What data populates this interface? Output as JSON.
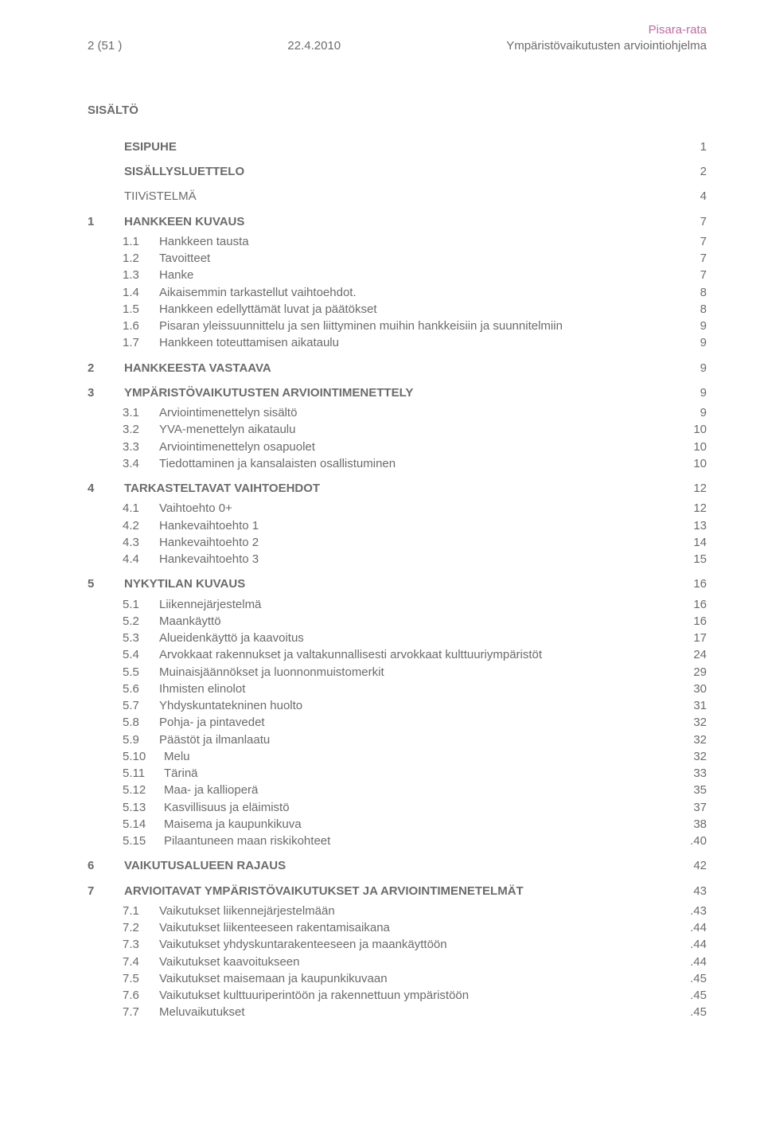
{
  "header": {
    "left": "2 (51 )",
    "center": "22.4.2010",
    "right_line1": "Pisara-rata",
    "right_line2": "Ympäristövaikutusten arviointiohjelma"
  },
  "sisalto_title": "SISÄLTÖ",
  "top_rows": [
    {
      "num": "",
      "label": "ESIPUHE",
      "page": "1",
      "bold": true,
      "indent": 0
    },
    {
      "num": "",
      "label": "SISÄLLYSLUETTELO",
      "page": "2",
      "bold": true,
      "indent": 0
    },
    {
      "num": "",
      "label": "TIIViSTELMÄ",
      "page": "4",
      "bold": false,
      "indent": 0
    }
  ],
  "sections": [
    {
      "num": "1",
      "label": "HANKKEEN KUVAUS",
      "page": "7",
      "items": [
        {
          "num": "1.1",
          "label": "Hankkeen tausta",
          "page": "7"
        },
        {
          "num": "1.2",
          "label": "Tavoitteet",
          "page": "7"
        },
        {
          "num": "1.3",
          "label": "Hanke",
          "page": "7"
        },
        {
          "num": "1.4",
          "label": "Aikaisemmin tarkastellut vaihtoehdot.",
          "page": "8"
        },
        {
          "num": "1.5",
          "label": "Hankkeen edellyttämät luvat ja päätökset",
          "page": "8"
        },
        {
          "num": "1.6",
          "label": "Pisaran yleissuunnittelu ja sen liittyminen muihin hankkeisiin ja suunnitelmiin",
          "page": "9"
        },
        {
          "num": "1.7",
          "label": "Hankkeen toteuttamisen aikataulu",
          "page": "9"
        }
      ]
    },
    {
      "num": "2",
      "label": "HANKKEESTA VASTAAVA",
      "page": "9",
      "items": []
    },
    {
      "num": "3",
      "label": "YMPÄRISTÖVAIKUTUSTEN ARVIOINTIMENETTELY",
      "page": "9",
      "items": [
        {
          "num": "3.1",
          "label": "Arviointimenettelyn sisältö",
          "page": "9"
        },
        {
          "num": "3.2",
          "label": "YVA-menettelyn aikataulu",
          "page": "10"
        },
        {
          "num": "3.3",
          "label": "Arviointimenettelyn osapuolet",
          "page": "10"
        },
        {
          "num": "3.4",
          "label": "Tiedottaminen ja kansalaisten osallistuminen",
          "page": "10"
        }
      ]
    },
    {
      "num": "4",
      "label": "TARKASTELTAVAT VAIHTOEHDOT",
      "page": "12",
      "items": [
        {
          "num": "4.1",
          "label": "Vaihtoehto 0+",
          "page": "12"
        },
        {
          "num": "4.2",
          "label": "Hankevaihtoehto 1",
          "page": "13"
        },
        {
          "num": "4.3",
          "label": "Hankevaihtoehto 2",
          "page": "14"
        },
        {
          "num": "4.4",
          "label": "Hankevaihtoehto 3",
          "page": "15"
        }
      ]
    },
    {
      "num": "5",
      "label": "NYKYTILAN KUVAUS",
      "page": "16",
      "items": [
        {
          "num": "5.1",
          "label": "Liikennejärjestelmä",
          "page": "16"
        },
        {
          "num": "5.2",
          "label": "Maankäyttö",
          "page": "16"
        },
        {
          "num": "5.3",
          "label": "Alueidenkäyttö ja kaavoitus",
          "page": "17"
        },
        {
          "num": "5.4",
          "label": "Arvokkaat rakennukset ja valtakunnallisesti arvokkaat kulttuuriympäristöt",
          "page": "24"
        },
        {
          "num": "5.5",
          "label": "Muinaisjäännökset ja luonnonmuistomerkit",
          "page": "29"
        },
        {
          "num": "5.6",
          "label": "Ihmisten elinolot",
          "page": "30"
        },
        {
          "num": "5.7",
          "label": "Yhdyskuntatekninen huolto",
          "page": "31"
        },
        {
          "num": "5.8",
          "label": "Pohja- ja pintavedet",
          "page": "32"
        },
        {
          "num": "5.9",
          "label": "Päästöt ja ilmanlaatu",
          "page": "32"
        },
        {
          "num": "5.10",
          "label": "Melu",
          "page": "32"
        },
        {
          "num": "5.11",
          "label": "Tärinä",
          "page": "33"
        },
        {
          "num": "5.12",
          "label": "Maa- ja kallioperä",
          "page": "35"
        },
        {
          "num": "5.13",
          "label": "Kasvillisuus ja eläimistö",
          "page": "37"
        },
        {
          "num": "5.14",
          "label": "Maisema ja kaupunkikuva",
          "page": "38"
        },
        {
          "num": "5.15",
          "label": "Pilaantuneen maan riskikohteet",
          "page": ".40"
        }
      ]
    },
    {
      "num": "6",
      "label": "VAIKUTUSALUEEN RAJAUS",
      "page": "42",
      "items": []
    },
    {
      "num": "7",
      "label": "ARVIOITAVAT YMPÄRISTÖVAIKUTUKSET JA ARVIOINTIMENETELMÄT",
      "page": "43",
      "items": [
        {
          "num": "7.1",
          "label": "Vaikutukset liikennejärjestelmään",
          "page": ".43"
        },
        {
          "num": "7.2",
          "label": "Vaikutukset liikenteeseen rakentamisaikana",
          "page": ".44"
        },
        {
          "num": "7.3",
          "label": "Vaikutukset yhdyskuntarakenteeseen ja maankäyttöön",
          "page": ".44"
        },
        {
          "num": "7.4",
          "label": "Vaikutukset kaavoitukseen",
          "page": ".44"
        },
        {
          "num": "7.5",
          "label": "Vaikutukset maisemaan ja kaupunkikuvaan",
          "page": ".45"
        },
        {
          "num": "7.6",
          "label": "Vaikutukset kulttuuriperintöön ja rakennettuun ympäristöön",
          "page": ".45"
        },
        {
          "num": "7.7",
          "label": "Meluvaikutukset",
          "page": ".45"
        }
      ]
    }
  ]
}
